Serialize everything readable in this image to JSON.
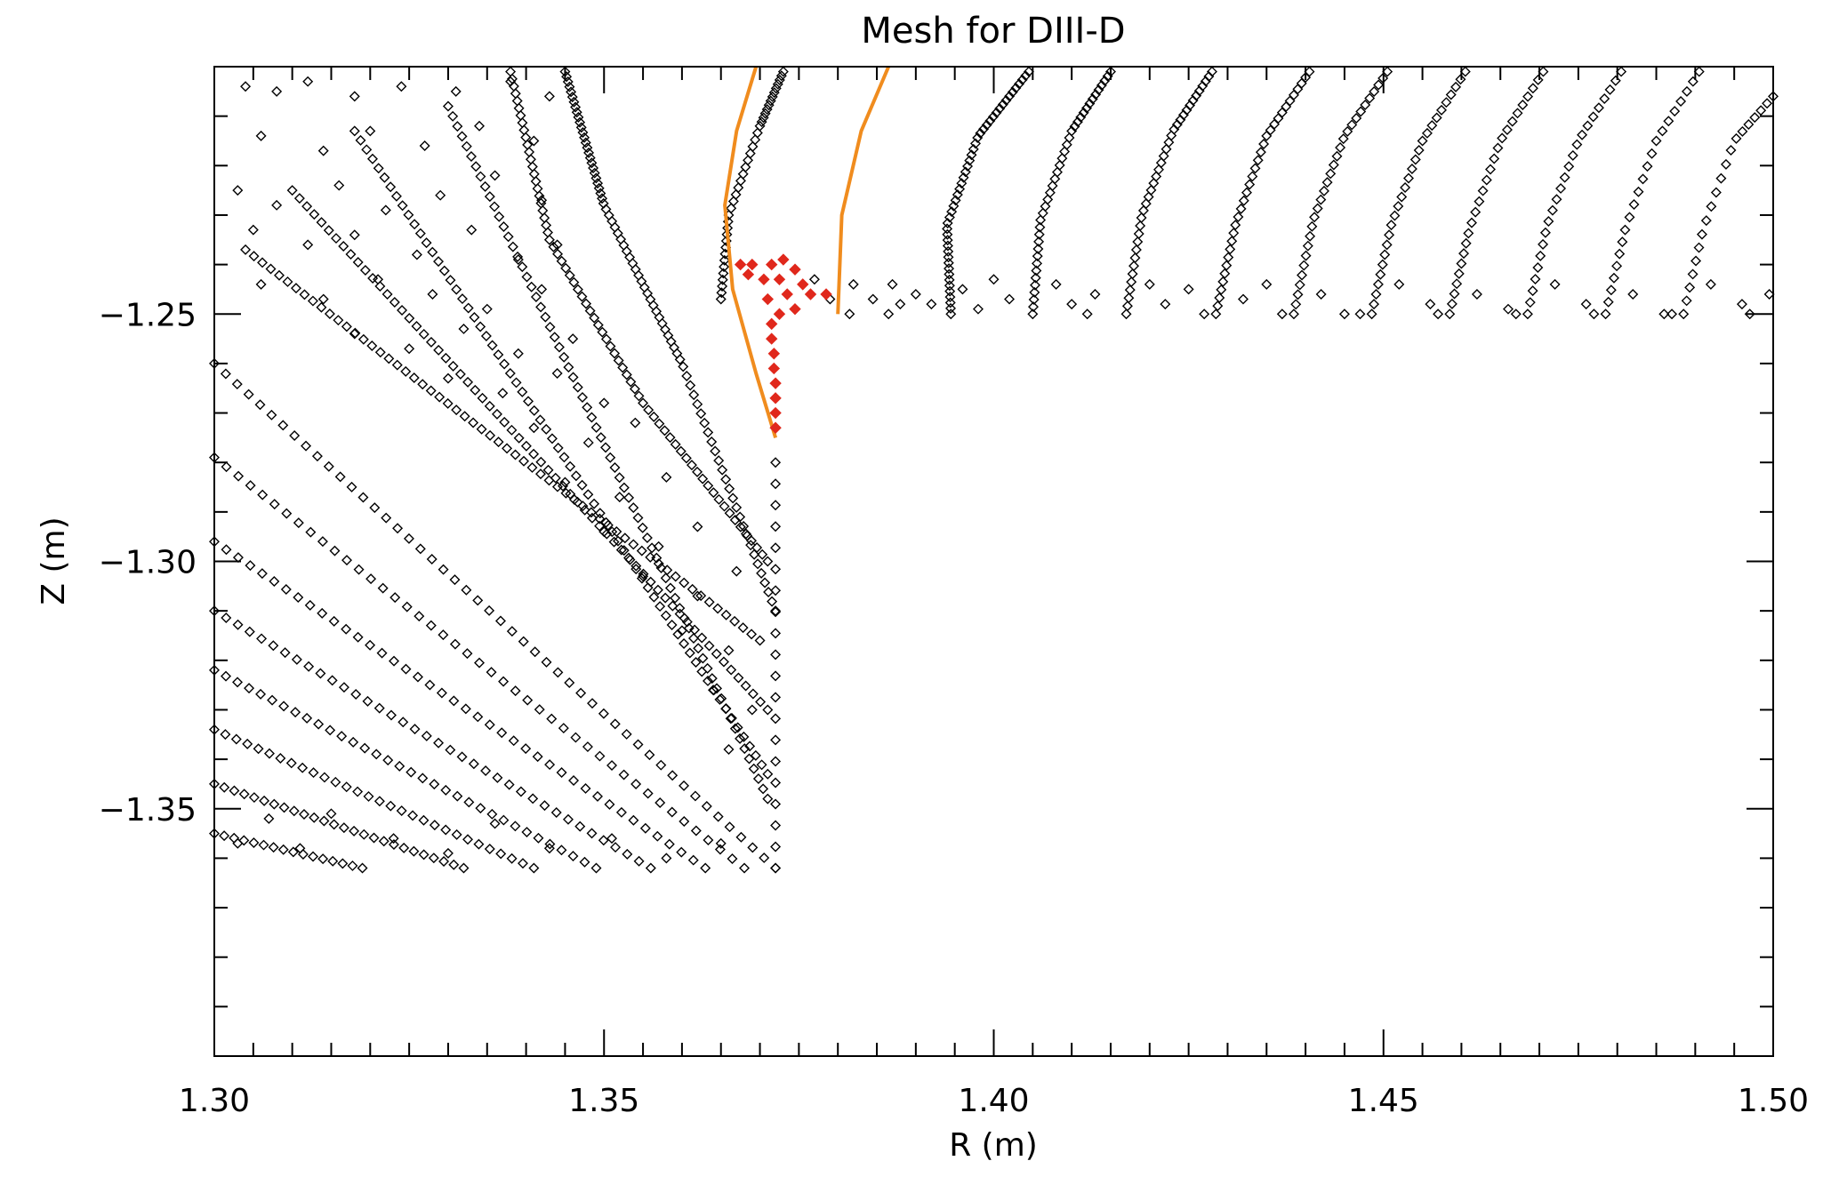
{
  "chart_data": {
    "type": "scatter",
    "title": "Mesh for DIII-D",
    "xlabel": "R (m)",
    "ylabel": "Z (m)",
    "xlim": [
      1.3,
      1.5
    ],
    "ylim": [
      -1.4,
      -1.2
    ],
    "x_ticks": [
      1.3,
      1.35,
      1.4,
      1.45,
      1.5
    ],
    "x_tick_labels": [
      "1.30",
      "1.35",
      "1.40",
      "1.45",
      "1.50"
    ],
    "x_minor_step": 0.005,
    "y_ticks": [
      -1.25,
      -1.3,
      -1.35
    ],
    "y_tick_labels": [
      "−1.25",
      "−1.30",
      "−1.35"
    ],
    "y_minor_step": 0.01,
    "grid": false,
    "colors": {
      "mesh_points": "#000000",
      "boundary_curves": "#f08c1e",
      "highlight_points": "#e0281c",
      "frame": "#000000"
    },
    "marker": "diamond-open",
    "series": [
      {
        "role": "mesh-points",
        "shape_hint": "open black diamonds",
        "lines": [
          {
            "from": [
              1.3,
              -1.26
            ],
            "to": [
              1.372,
              -1.362
            ],
            "n": 50
          },
          {
            "from": [
              1.3,
              -1.279
            ],
            "to": [
              1.368,
              -1.362
            ],
            "n": 45
          },
          {
            "from": [
              1.3,
              -1.296
            ],
            "to": [
              1.363,
              -1.362
            ],
            "n": 42
          },
          {
            "from": [
              1.3,
              -1.31
            ],
            "to": [
              1.356,
              -1.362
            ],
            "n": 38
          },
          {
            "from": [
              1.3,
              -1.322
            ],
            "to": [
              1.349,
              -1.362
            ],
            "n": 34
          },
          {
            "from": [
              1.3,
              -1.334
            ],
            "to": [
              1.341,
              -1.362
            ],
            "n": 30
          },
          {
            "from": [
              1.3,
              -1.345
            ],
            "to": [
              1.332,
              -1.362
            ],
            "n": 26
          },
          {
            "from": [
              1.3,
              -1.355
            ],
            "to": [
              1.319,
              -1.362
            ],
            "n": 16
          },
          {
            "from": [
              1.304,
              -1.237
            ],
            "to": [
              1.37,
              -1.316
            ],
            "n": 62
          },
          {
            "from": [
              1.31,
              -1.225
            ],
            "to": [
              1.371,
              -1.33
            ],
            "n": 66
          },
          {
            "from": [
              1.318,
              -1.213
            ],
            "to": [
              1.371,
              -1.343
            ],
            "n": 70
          },
          {
            "from": [
              1.33,
              -1.208
            ],
            "to": [
              1.371,
              -1.348
            ],
            "n": 70
          }
        ],
        "arcs": [
          {
            "points": [
              [
                1.345,
                -1.201
              ],
              [
                1.35,
                -1.228
              ],
              [
                1.36,
                -1.26
              ],
              [
                1.372,
                -1.31
              ]
            ],
            "n": 80
          },
          {
            "points": [
              [
                1.338,
                -1.201
              ],
              [
                1.343,
                -1.235
              ],
              [
                1.355,
                -1.268
              ],
              [
                1.371,
                -1.3
              ]
            ],
            "n": 70
          },
          {
            "points": [
              [
                1.365,
                -1.247
              ],
              [
                1.366,
                -1.23
              ],
              [
                1.37,
                -1.212
              ],
              [
                1.373,
                -1.201
              ]
            ],
            "n": 40
          },
          {
            "points": [
              [
                1.372,
                -1.28
              ],
              [
                1.372,
                -1.362
              ]
            ],
            "n": 20
          },
          {
            "points": [
              [
                1.3945,
                -1.25
              ],
              [
                1.394,
                -1.232
              ],
              [
                1.398,
                -1.214
              ],
              [
                1.4045,
                -1.201
              ]
            ],
            "n": 48
          },
          {
            "points": [
              [
                1.405,
                -1.25
              ],
              [
                1.406,
                -1.231
              ],
              [
                1.41,
                -1.213
              ],
              [
                1.415,
                -1.201
              ]
            ],
            "n": 40
          },
          {
            "points": [
              [
                1.417,
                -1.25
              ],
              [
                1.419,
                -1.23
              ],
              [
                1.423,
                -1.213
              ],
              [
                1.428,
                -1.201
              ]
            ],
            "n": 38
          },
          {
            "points": [
              [
                1.4285,
                -1.25
              ],
              [
                1.431,
                -1.232
              ],
              [
                1.435,
                -1.214
              ],
              [
                1.4405,
                -1.201
              ]
            ],
            "n": 34
          },
          {
            "points": [
              [
                1.4385,
                -1.25
              ],
              [
                1.441,
                -1.231
              ],
              [
                1.445,
                -1.214
              ],
              [
                1.4505,
                -1.201
              ]
            ],
            "n": 30
          },
          {
            "points": [
              [
                1.4485,
                -1.25
              ],
              [
                1.451,
                -1.232
              ],
              [
                1.455,
                -1.215
              ],
              [
                1.4605,
                -1.201
              ]
            ],
            "n": 28
          },
          {
            "points": [
              [
                1.4585,
                -1.25
              ],
              [
                1.461,
                -1.233
              ],
              [
                1.465,
                -1.215
              ],
              [
                1.4705,
                -1.201
              ]
            ],
            "n": 26
          },
          {
            "points": [
              [
                1.4685,
                -1.25
              ],
              [
                1.471,
                -1.232
              ],
              [
                1.475,
                -1.215
              ],
              [
                1.4805,
                -1.201
              ]
            ],
            "n": 24
          },
          {
            "points": [
              [
                1.4785,
                -1.25
              ],
              [
                1.481,
                -1.233
              ],
              [
                1.485,
                -1.215
              ],
              [
                1.4905,
                -1.201
              ]
            ],
            "n": 22
          },
          {
            "points": [
              [
                1.4885,
                -1.25
              ],
              [
                1.491,
                -1.233
              ],
              [
                1.495,
                -1.215
              ],
              [
                1.5,
                -1.206
              ]
            ],
            "n": 20
          }
        ],
        "extra_points": [
          [
            1.304,
            -1.204
          ],
          [
            1.308,
            -1.205
          ],
          [
            1.312,
            -1.203
          ],
          [
            1.318,
            -1.206
          ],
          [
            1.324,
            -1.204
          ],
          [
            1.331,
            -1.205
          ],
          [
            1.338,
            -1.203
          ],
          [
            1.343,
            -1.206
          ],
          [
            1.306,
            -1.214
          ],
          [
            1.314,
            -1.217
          ],
          [
            1.32,
            -1.213
          ],
          [
            1.327,
            -1.216
          ],
          [
            1.334,
            -1.212
          ],
          [
            1.341,
            -1.215
          ],
          [
            1.303,
            -1.225
          ],
          [
            1.308,
            -1.228
          ],
          [
            1.316,
            -1.224
          ],
          [
            1.322,
            -1.229
          ],
          [
            1.329,
            -1.226
          ],
          [
            1.336,
            -1.222
          ],
          [
            1.342,
            -1.227
          ],
          [
            1.305,
            -1.233
          ],
          [
            1.312,
            -1.236
          ],
          [
            1.318,
            -1.234
          ],
          [
            1.326,
            -1.238
          ],
          [
            1.333,
            -1.233
          ],
          [
            1.339,
            -1.239
          ],
          [
            1.344,
            -1.236
          ],
          [
            1.306,
            -1.244
          ],
          [
            1.314,
            -1.247
          ],
          [
            1.321,
            -1.243
          ],
          [
            1.328,
            -1.246
          ],
          [
            1.335,
            -1.249
          ],
          [
            1.342,
            -1.245
          ],
          [
            1.318,
            -1.254
          ],
          [
            1.325,
            -1.257
          ],
          [
            1.332,
            -1.253
          ],
          [
            1.339,
            -1.258
          ],
          [
            1.346,
            -1.255
          ],
          [
            1.33,
            -1.263
          ],
          [
            1.337,
            -1.266
          ],
          [
            1.344,
            -1.262
          ],
          [
            1.35,
            -1.268
          ],
          [
            1.341,
            -1.273
          ],
          [
            1.348,
            -1.276
          ],
          [
            1.354,
            -1.272
          ],
          [
            1.345,
            -1.284
          ],
          [
            1.352,
            -1.287
          ],
          [
            1.358,
            -1.283
          ],
          [
            1.35,
            -1.294
          ],
          [
            1.357,
            -1.297
          ],
          [
            1.362,
            -1.293
          ],
          [
            1.355,
            -1.303
          ],
          [
            1.362,
            -1.307
          ],
          [
            1.367,
            -1.302
          ],
          [
            1.36,
            -1.314
          ],
          [
            1.366,
            -1.318
          ],
          [
            1.364,
            -1.326
          ],
          [
            1.369,
            -1.33
          ],
          [
            1.366,
            -1.338
          ],
          [
            1.303,
            -1.357
          ],
          [
            1.307,
            -1.352
          ],
          [
            1.311,
            -1.358
          ],
          [
            1.315,
            -1.351
          ],
          [
            1.323,
            -1.356
          ],
          [
            1.33,
            -1.359
          ],
          [
            1.336,
            -1.353
          ],
          [
            1.343,
            -1.358
          ],
          [
            1.351,
            -1.356
          ],
          [
            1.358,
            -1.36
          ],
          [
            1.365,
            -1.357
          ],
          [
            1.377,
            -1.243
          ],
          [
            1.379,
            -1.247
          ],
          [
            1.382,
            -1.244
          ],
          [
            1.3845,
            -1.247
          ],
          [
            1.387,
            -1.244
          ],
          [
            1.388,
            -1.248
          ],
          [
            1.3865,
            -1.25
          ],
          [
            1.3815,
            -1.25
          ],
          [
            1.39,
            -1.246
          ],
          [
            1.392,
            -1.248
          ],
          [
            1.396,
            -1.245
          ],
          [
            1.398,
            -1.249
          ],
          [
            1.4,
            -1.243
          ],
          [
            1.402,
            -1.247
          ],
          [
            1.408,
            -1.244
          ],
          [
            1.41,
            -1.248
          ],
          [
            1.413,
            -1.246
          ],
          [
            1.42,
            -1.244
          ],
          [
            1.422,
            -1.248
          ],
          [
            1.425,
            -1.245
          ],
          [
            1.432,
            -1.247
          ],
          [
            1.435,
            -1.244
          ],
          [
            1.437,
            -1.25
          ],
          [
            1.442,
            -1.246
          ],
          [
            1.445,
            -1.25
          ],
          [
            1.452,
            -1.244
          ],
          [
            1.456,
            -1.248
          ],
          [
            1.462,
            -1.246
          ],
          [
            1.466,
            -1.249
          ],
          [
            1.472,
            -1.244
          ],
          [
            1.476,
            -1.248
          ],
          [
            1.482,
            -1.246
          ],
          [
            1.486,
            -1.25
          ],
          [
            1.492,
            -1.244
          ],
          [
            1.496,
            -1.248
          ],
          [
            1.4995,
            -1.246
          ],
          [
            1.412,
            -1.25
          ],
          [
            1.427,
            -1.25
          ],
          [
            1.447,
            -1.25
          ],
          [
            1.457,
            -1.25
          ],
          [
            1.467,
            -1.25
          ],
          [
            1.477,
            -1.25
          ],
          [
            1.487,
            -1.25
          ],
          [
            1.497,
            -1.25
          ]
        ]
      },
      {
        "role": "boundary-curves",
        "shape_hint": "orange lines",
        "curves": [
          [
            [
              1.3695,
              -1.2
            ],
            [
              1.367,
              -1.213
            ],
            [
              1.3655,
              -1.228
            ],
            [
              1.3665,
              -1.245
            ],
            [
              1.3695,
              -1.262
            ],
            [
              1.372,
              -1.275
            ]
          ],
          [
            [
              1.3865,
              -1.2
            ],
            [
              1.383,
              -1.213
            ],
            [
              1.3805,
              -1.23
            ],
            [
              1.38,
              -1.25
            ]
          ]
        ]
      },
      {
        "role": "highlight-points",
        "shape_hint": "red filled diamonds",
        "points": [
          [
            1.3675,
            -1.24
          ],
          [
            1.369,
            -1.24
          ],
          [
            1.3715,
            -1.24
          ],
          [
            1.373,
            -1.239
          ],
          [
            1.3745,
            -1.241
          ],
          [
            1.3685,
            -1.242
          ],
          [
            1.3705,
            -1.243
          ],
          [
            1.3725,
            -1.243
          ],
          [
            1.3755,
            -1.244
          ],
          [
            1.3735,
            -1.246
          ],
          [
            1.3765,
            -1.246
          ],
          [
            1.3785,
            -1.246
          ],
          [
            1.371,
            -1.247
          ],
          [
            1.3745,
            -1.249
          ],
          [
            1.3725,
            -1.25
          ],
          [
            1.3715,
            -1.252
          ],
          [
            1.3715,
            -1.255
          ],
          [
            1.3718,
            -1.258
          ],
          [
            1.3718,
            -1.261
          ],
          [
            1.372,
            -1.264
          ],
          [
            1.372,
            -1.267
          ],
          [
            1.372,
            -1.27
          ],
          [
            1.372,
            -1.273
          ]
        ]
      }
    ]
  }
}
